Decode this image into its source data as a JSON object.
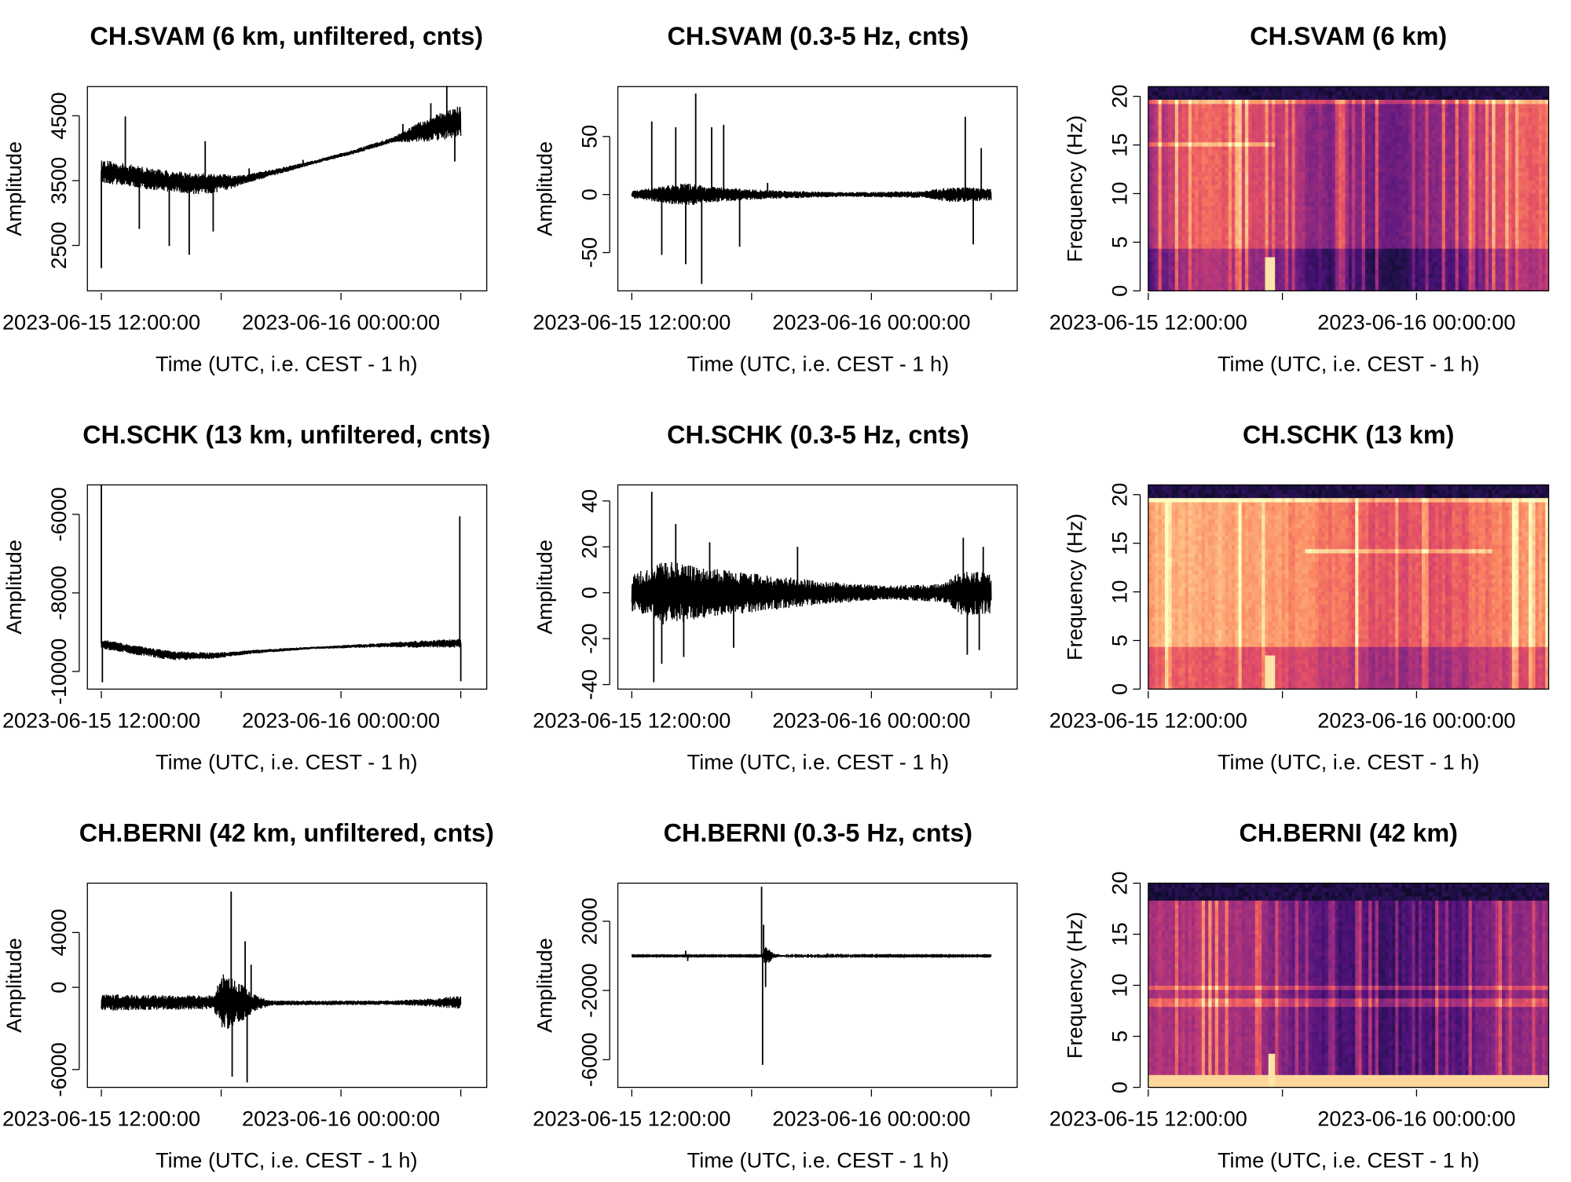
{
  "figure": {
    "xlabel": "Time (UTC, i.e. CEST - 1 h)",
    "x_tick_labels": [
      "2023-06-15 12:00:00",
      "2023-06-16 00:00:00"
    ]
  },
  "chart_data": [
    {
      "type": "line",
      "title": "CH.SVAM (6 km, unfiltered, cnts)",
      "xlabel": "Time (UTC, i.e. CEST - 1 h)",
      "ylabel": "Amplitude",
      "xlim": [
        10.7,
        30.7
      ],
      "ylim": [
        1800,
        4950
      ],
      "x_ticks": [
        11.4,
        17.4,
        23.4,
        29.4
      ],
      "x_tick_labels": {
        "11.4": "2023-06-15 12:00:00",
        "23.4": "2023-06-16 00:00:00"
      },
      "y_ticks": [
        2500,
        3500,
        4500
      ],
      "y_tick_labels": [
        "2500",
        "3500",
        "4500"
      ],
      "series": [
        {
          "baseline": [
            [
              11.4,
              3650
            ],
            [
              14,
              3520
            ],
            [
              16,
              3450
            ],
            [
              18,
              3480
            ],
            [
              21,
              3700
            ],
            [
              24,
              3940
            ],
            [
              27,
              4220
            ],
            [
              29.4,
              4420
            ]
          ],
          "noise": [
            [
              11.4,
              180
            ],
            [
              17,
              160
            ],
            [
              18.5,
              70
            ],
            [
              22,
              30
            ],
            [
              26,
              40
            ],
            [
              27.5,
              170
            ],
            [
              29.4,
              260
            ]
          ],
          "spikes": [
            [
              11.4,
              -1500
            ],
            [
              12.6,
              900
            ],
            [
              13.3,
              -800
            ],
            [
              14.8,
              -1000
            ],
            [
              15.8,
              -1100
            ],
            [
              16.6,
              650
            ],
            [
              17,
              -750
            ],
            [
              18.8,
              150
            ],
            [
              21.5,
              80
            ],
            [
              26.5,
              200
            ],
            [
              27.9,
              400
            ],
            [
              28.7,
              600
            ],
            [
              29.1,
              -600
            ]
          ]
        }
      ]
    },
    {
      "type": "line",
      "title": "CH.SVAM (0.3-5 Hz, cnts)",
      "xlabel": "Time (UTC, i.e. CEST - 1 h)",
      "ylabel": "Amplitude",
      "xlim": [
        10.7,
        30.7
      ],
      "ylim": [
        -83,
        93
      ],
      "x_ticks": [
        11.4,
        17.4,
        23.4,
        29.4
      ],
      "x_tick_labels": {
        "11.4": "2023-06-15 12:00:00",
        "23.4": "2023-06-16 00:00:00"
      },
      "y_ticks": [
        -50,
        0,
        50
      ],
      "y_tick_labels": [
        "-50",
        "0",
        "50"
      ],
      "series": [
        {
          "baseline": [
            [
              11.4,
              0
            ],
            [
              29.4,
              0
            ]
          ],
          "noise": [
            [
              11.4,
              3
            ],
            [
              12.5,
              6
            ],
            [
              14,
              10
            ],
            [
              16,
              6
            ],
            [
              18,
              4
            ],
            [
              22,
              2
            ],
            [
              26,
              3
            ],
            [
              27.5,
              7
            ],
            [
              29.4,
              5
            ]
          ],
          "spikes": [
            [
              12.4,
              63
            ],
            [
              12.9,
              -52
            ],
            [
              13.6,
              58
            ],
            [
              14.1,
              -60
            ],
            [
              14.6,
              87
            ],
            [
              14.9,
              -77
            ],
            [
              15.4,
              58
            ],
            [
              16,
              60
            ],
            [
              16.8,
              -45
            ],
            [
              18.2,
              10
            ],
            [
              28.1,
              67
            ],
            [
              28.5,
              -43
            ],
            [
              28.9,
              40
            ]
          ]
        }
      ]
    },
    {
      "type": "heatmap",
      "title": "CH.SVAM (6 km)",
      "xlabel": "Time (UTC, i.e. CEST - 1 h)",
      "ylabel": "Frequency (Hz)",
      "xlim": [
        11.4,
        30.8
      ],
      "ylim": [
        0,
        21
      ],
      "x_ticks": [
        11.4,
        17.9,
        24.4
      ],
      "x_tick_labels": {
        "11.4": "2023-06-15 12:00:00",
        "24.4": "2023-06-16 00:00:00"
      },
      "y_ticks": [
        0,
        5,
        10,
        15,
        20
      ],
      "y_tick_labels": [
        "0",
        "5",
        "10",
        "15",
        "20"
      ],
      "profile": {
        "t": [
          11.4,
          14,
          17.5,
          20,
          23,
          26,
          28.5,
          30.8
        ],
        "i": [
          0.45,
          0.68,
          0.55,
          0.38,
          0.35,
          0.4,
          0.6,
          0.7
        ]
      },
      "fcut": 19.5,
      "hlines": [
        {
          "f": 15.1,
          "t0": 11.4,
          "t1": 17.6
        },
        {
          "f": 19.6,
          "t0": 11.4,
          "t1": 30.8
        }
      ],
      "quake_t": 17.3,
      "lowband": false
    },
    {
      "type": "line",
      "title": "CH.SCHK (13 km, unfiltered, cnts)",
      "xlabel": "Time (UTC, i.e. CEST - 1 h)",
      "ylabel": "Amplitude",
      "xlim": [
        10.7,
        30.7
      ],
      "ylim": [
        -10450,
        -5250
      ],
      "x_ticks": [
        11.4,
        17.4,
        23.4,
        29.4
      ],
      "x_tick_labels": {
        "11.4": "2023-06-15 12:00:00",
        "23.4": "2023-06-16 00:00:00"
      },
      "y_ticks": [
        -10000,
        -8000,
        -6000
      ],
      "y_tick_labels": [
        "-10000",
        "-8000",
        "-6000"
      ],
      "series": [
        {
          "baseline": [
            [
              11.4,
              -9300
            ],
            [
              13,
              -9450
            ],
            [
              15,
              -9600
            ],
            [
              17,
              -9600
            ],
            [
              19,
              -9500
            ],
            [
              22,
              -9400
            ],
            [
              26,
              -9320
            ],
            [
              29.4,
              -9280
            ]
          ],
          "noise": [
            [
              11.4,
              120
            ],
            [
              15,
              120
            ],
            [
              18,
              60
            ],
            [
              22,
              30
            ],
            [
              26,
              60
            ],
            [
              27,
              90
            ],
            [
              29.4,
              110
            ]
          ],
          "spikes": [
            [
              11.4,
              4050
            ],
            [
              11.45,
              -970
            ],
            [
              29.35,
              3230
            ],
            [
              29.4,
              -970
            ]
          ]
        }
      ]
    },
    {
      "type": "line",
      "title": "CH.SCHK (0.3-5 Hz, cnts)",
      "xlabel": "Time (UTC, i.e. CEST - 1 h)",
      "ylabel": "Amplitude",
      "xlim": [
        10.7,
        30.7
      ],
      "ylim": [
        -42,
        47
      ],
      "x_ticks": [
        11.4,
        17.4,
        23.4,
        29.4
      ],
      "x_tick_labels": {
        "11.4": "2023-06-15 12:00:00",
        "23.4": "2023-06-16 00:00:00"
      },
      "y_ticks": [
        -40,
        -20,
        0,
        20,
        40
      ],
      "y_tick_labels": [
        "-40",
        "-20",
        "0",
        "20",
        "40"
      ],
      "series": [
        {
          "baseline": [
            [
              11.4,
              0
            ],
            [
              29.4,
              0
            ]
          ],
          "noise": [
            [
              11.4,
              8
            ],
            [
              13,
              14
            ],
            [
              15,
              11
            ],
            [
              18,
              8
            ],
            [
              21,
              5
            ],
            [
              24,
              3
            ],
            [
              27,
              4
            ],
            [
              28,
              10
            ],
            [
              29.4,
              9
            ]
          ],
          "spikes": [
            [
              12.4,
              44
            ],
            [
              12.5,
              -39
            ],
            [
              12.9,
              -31
            ],
            [
              13.6,
              30
            ],
            [
              14,
              -28
            ],
            [
              15.3,
              22
            ],
            [
              16.5,
              -24
            ],
            [
              19.7,
              20
            ],
            [
              28,
              24
            ],
            [
              28.2,
              -27
            ],
            [
              28.8,
              -25
            ],
            [
              29,
              20
            ]
          ]
        }
      ]
    },
    {
      "type": "heatmap",
      "title": "CH.SCHK (13 km)",
      "xlabel": "Time (UTC, i.e. CEST - 1 h)",
      "ylabel": "Frequency (Hz)",
      "xlim": [
        11.4,
        30.8
      ],
      "ylim": [
        0,
        21
      ],
      "x_ticks": [
        11.4,
        17.9,
        24.4
      ],
      "x_tick_labels": {
        "11.4": "2023-06-15 12:00:00",
        "24.4": "2023-06-16 00:00:00"
      },
      "y_ticks": [
        0,
        5,
        10,
        15,
        20
      ],
      "y_tick_labels": [
        "0",
        "5",
        "10",
        "15",
        "20"
      ],
      "profile": {
        "t": [
          11.4,
          14,
          17.5,
          20,
          23,
          26,
          28.5,
          30.8
        ],
        "i": [
          0.82,
          0.84,
          0.8,
          0.72,
          0.62,
          0.64,
          0.74,
          0.8
        ]
      },
      "fcut": 19.5,
      "hlines": [
        {
          "f": 14.4,
          "t0": 19,
          "t1": 28
        },
        {
          "f": 19.6,
          "t0": 11.4,
          "t1": 30.8
        }
      ],
      "quake_t": 17.3,
      "lowband": false
    },
    {
      "type": "line",
      "title": "CH.BERNI (42 km, unfiltered, cnts)",
      "xlabel": "Time (UTC, i.e. CEST - 1 h)",
      "ylabel": "Amplitude",
      "xlim": [
        10.7,
        30.7
      ],
      "ylim": [
        -7300,
        7600
      ],
      "x_ticks": [
        11.4,
        17.4,
        23.4,
        29.4
      ],
      "x_tick_labels": {
        "11.4": "2023-06-15 12:00:00",
        "23.4": "2023-06-16 00:00:00"
      },
      "y_ticks": [
        -6000,
        0,
        4000
      ],
      "y_tick_labels": [
        "-6000",
        "0",
        "4000"
      ],
      "series": [
        {
          "baseline": [
            [
              11.4,
              -1100
            ],
            [
              17.4,
              -1100
            ],
            [
              19,
              -1150
            ],
            [
              29.4,
              -1100
            ]
          ],
          "noise": [
            [
              11.4,
              600
            ],
            [
              17,
              500
            ],
            [
              17.5,
              2200
            ],
            [
              18.3,
              1500
            ],
            [
              19.2,
              500
            ],
            [
              20,
              180
            ],
            [
              26,
              160
            ],
            [
              28,
              300
            ],
            [
              29.4,
              500
            ]
          ],
          "spikes": [
            [
              17.9,
              8100
            ],
            [
              17.95,
              -5400
            ],
            [
              18.6,
              4500
            ],
            [
              18.7,
              -5800
            ],
            [
              18.9,
              2800
            ]
          ]
        }
      ]
    },
    {
      "type": "line",
      "title": "CH.BERNI (0.3-5 Hz, cnts)",
      "xlabel": "Time (UTC, i.e. CEST - 1 h)",
      "ylabel": "Amplitude",
      "xlim": [
        10.7,
        30.7
      ],
      "ylim": [
        -7600,
        4200
      ],
      "x_ticks": [
        11.4,
        17.4,
        23.4,
        29.4
      ],
      "x_tick_labels": {
        "11.4": "2023-06-15 12:00:00",
        "23.4": "2023-06-16 00:00:00"
      },
      "y_ticks": [
        -6000,
        -2000,
        2000
      ],
      "y_tick_labels": [
        "-6000",
        "-2000",
        "2000"
      ],
      "series": [
        {
          "baseline": [
            [
              11.4,
              0
            ],
            [
              29.4,
              0
            ]
          ],
          "noise": [
            [
              11.4,
              30
            ],
            [
              17.9,
              30
            ],
            [
              18.1,
              600
            ],
            [
              18.5,
              150
            ],
            [
              19,
              40
            ],
            [
              29.4,
              30
            ]
          ],
          "spikes": [
            [
              17.9,
              4000
            ],
            [
              17.95,
              -6300
            ],
            [
              18,
              1800
            ],
            [
              18.1,
              -1800
            ],
            [
              14.1,
              300
            ],
            [
              14.2,
              -300
            ],
            [
              21.2,
              150
            ]
          ]
        }
      ]
    },
    {
      "type": "heatmap",
      "title": "CH.BERNI (42 km)",
      "xlabel": "Time (UTC, i.e. CEST - 1 h)",
      "ylabel": "Frequency (Hz)",
      "xlim": [
        11.4,
        30.8
      ],
      "ylim": [
        0,
        20
      ],
      "x_ticks": [
        11.4,
        17.9,
        24.4
      ],
      "x_tick_labels": {
        "11.4": "2023-06-15 12:00:00",
        "24.4": "2023-06-16 00:00:00"
      },
      "y_ticks": [
        0,
        5,
        10,
        15,
        20
      ],
      "y_tick_labels": [
        "0",
        "5",
        "10",
        "15",
        "20"
      ],
      "profile": {
        "t": [
          11.4,
          14,
          17.5,
          20,
          23,
          26,
          28.5,
          30.8
        ],
        "i": [
          0.48,
          0.5,
          0.4,
          0.25,
          0.22,
          0.25,
          0.38,
          0.45
        ]
      },
      "fcut": 18.2,
      "hlines": [
        {
          "f": 9.8,
          "t0": 11.4,
          "t1": 30.8
        },
        {
          "f": 8.3,
          "t0": 11.4,
          "t1": 30.8
        }
      ],
      "quake_t": 17.4,
      "lowband": true
    }
  ]
}
